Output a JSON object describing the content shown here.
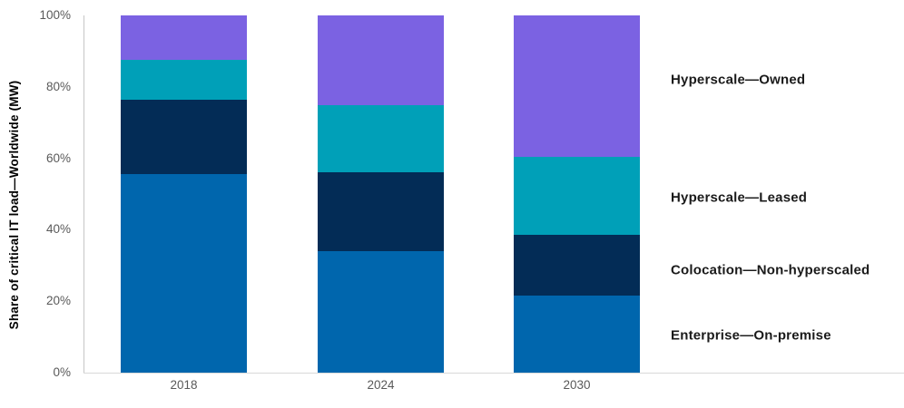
{
  "page": {
    "background_color": "#ffffff"
  },
  "chart_data": {
    "type": "bar",
    "stacked": true,
    "percent_stacked": true,
    "title": "",
    "xlabel": "",
    "ylabel": "Share of critical IT load—Worldwide (MW)",
    "categories": [
      "2018",
      "2024",
      "2030"
    ],
    "series": [
      {
        "name": "Enterprise—On-premise",
        "color": "#0066AD",
        "values": [
          55.5,
          34,
          21.5
        ]
      },
      {
        "name": "Colocation—Non-hyperscaled",
        "color": "#032C56",
        "values": [
          21,
          22,
          17
        ]
      },
      {
        "name": "Hyperscale—Leased",
        "color": "#00A0B8",
        "values": [
          11,
          19,
          22
        ]
      },
      {
        "name": "Hyperscale—Owned",
        "color": "#7B62E2",
        "values": [
          12.5,
          25,
          39.5
        ]
      }
    ],
    "y_ticks": [
      {
        "value": 0,
        "label": "0%"
      },
      {
        "value": 20,
        "label": "20%"
      },
      {
        "value": 40,
        "label": "40%"
      },
      {
        "value": 60,
        "label": "60%"
      },
      {
        "value": 80,
        "label": "80%"
      },
      {
        "value": 100,
        "label": "100%"
      }
    ],
    "ylim": [
      0,
      100
    ],
    "grid": false,
    "legend_position": "right-of-plot",
    "legend_labels_top_to_bottom": [
      "Hyperscale—Owned",
      "Hyperscale—Leased",
      "Colocation—Non-hyperscaled",
      "Enterprise—On-premise"
    ],
    "colors": {
      "axis_line": "#d9d9d9",
      "tick_text": "#595959",
      "label_text": "#1a1a1a"
    }
  }
}
